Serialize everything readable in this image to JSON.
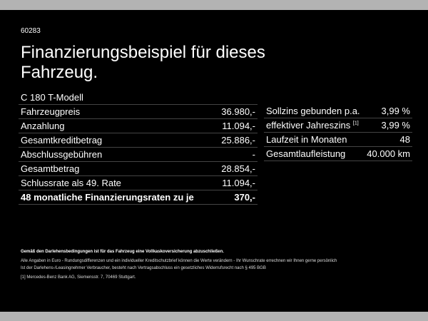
{
  "code": "60283",
  "title": "Finanzierungsbeispiel für dieses Fahrzeug.",
  "model": "C 180 T-Modell",
  "left_rows": [
    {
      "label": "Fahrzeugpreis",
      "value": "36.980,-"
    },
    {
      "label": "Anzahlung",
      "value": "11.094,-"
    },
    {
      "label": "Gesamtkreditbetrag",
      "value": "25.886,-"
    },
    {
      "label": "Abschlussgebühren",
      "value": "-"
    },
    {
      "label": "Gesamtbetrag",
      "value": "28.854,-"
    },
    {
      "label": "Schlussrate als 49. Rate",
      "value": "11.094,-"
    },
    {
      "label": "48 monatliche Finanzierungsraten zu je",
      "value": "370,-"
    }
  ],
  "right_rows": [
    {
      "label": "Sollzins gebunden p.a.",
      "value": "3,99 %"
    },
    {
      "label": "effektiver Jahreszins",
      "sup": "[1]",
      "value": "3,99 %"
    },
    {
      "label": "Laufzeit in Monaten",
      "value": "48"
    },
    {
      "label": "Gesamtlaufleistung",
      "value": "40.000 km"
    }
  ],
  "notes": {
    "bold": "Gemäß den Darlehensbedingungen ist für das Fahrzeug eine Vollkaskoversicherung abzuschließen.",
    "line1": "Alle Angaben in Euro - Rundungsdifferenzen und ein individueller Kreditschutzbrief können die Werte verändern - Ihr Wunschrate errechnen wir Ihnen gerne persönlich",
    "line2": "Ist der Darlehens-/Leasingnehmer Verbraucher, besteht nach Vertragsabschluss ein gesetzliches Widerrufsrecht nach § 495 BGB",
    "footnote_mark": "[1]",
    "footnote": "Mercedes-Benz Bank AG, Siemensstr. 7, 70469 Stuttgart."
  }
}
